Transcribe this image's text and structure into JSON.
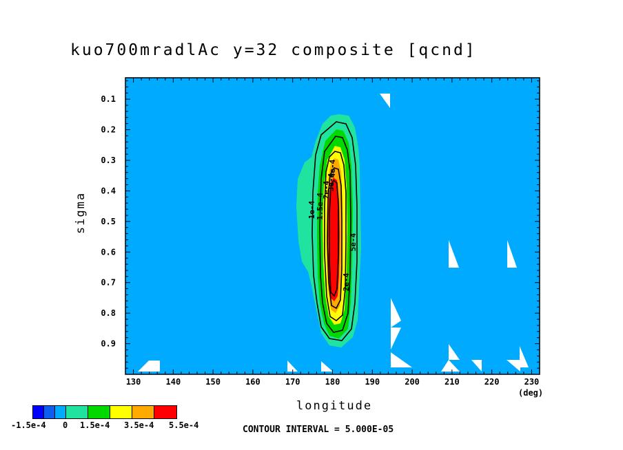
{
  "chart_data": {
    "type": "contour",
    "title": "kuo700mradlAc y=32 composite [qcnd]",
    "xlabel": "longitude",
    "xunit": "(deg)",
    "ylabel": "sigma",
    "xlim": [
      128,
      232
    ],
    "ylim": [
      0.03,
      1.0
    ],
    "y_inverted": true,
    "xticks": [
      130,
      140,
      150,
      160,
      170,
      180,
      190,
      200,
      210,
      220,
      230
    ],
    "yticks": [
      0.1,
      0.2,
      0.3,
      0.4,
      0.5,
      0.6,
      0.7,
      0.8,
      0.9
    ],
    "contour_interval": "CONTOUR INTERVAL = 5.000E-05",
    "contour_labels": [
      "1e-4",
      "1.5e-4",
      "2e-4",
      "2e-4",
      "3e-4",
      "4e-4",
      "5e-4"
    ],
    "max": {
      "lon": 180,
      "sigma": 0.5,
      "value": 0.00055
    },
    "colorbar": {
      "levels": [
        -0.00015,
        0,
        0.00015,
        0.00035,
        0.00055
      ],
      "labels": [
        "-1.5e-4",
        "0",
        "1.5e-4",
        "3.5e-4",
        "5.5e-4"
      ],
      "colors": [
        "#0000ff",
        "#0d5ef0",
        "#00aaff",
        "#20e3a0",
        "#00d800",
        "#ffff00",
        "#ffaa00",
        "#ff0000"
      ]
    },
    "background_color": "#00aaff"
  }
}
